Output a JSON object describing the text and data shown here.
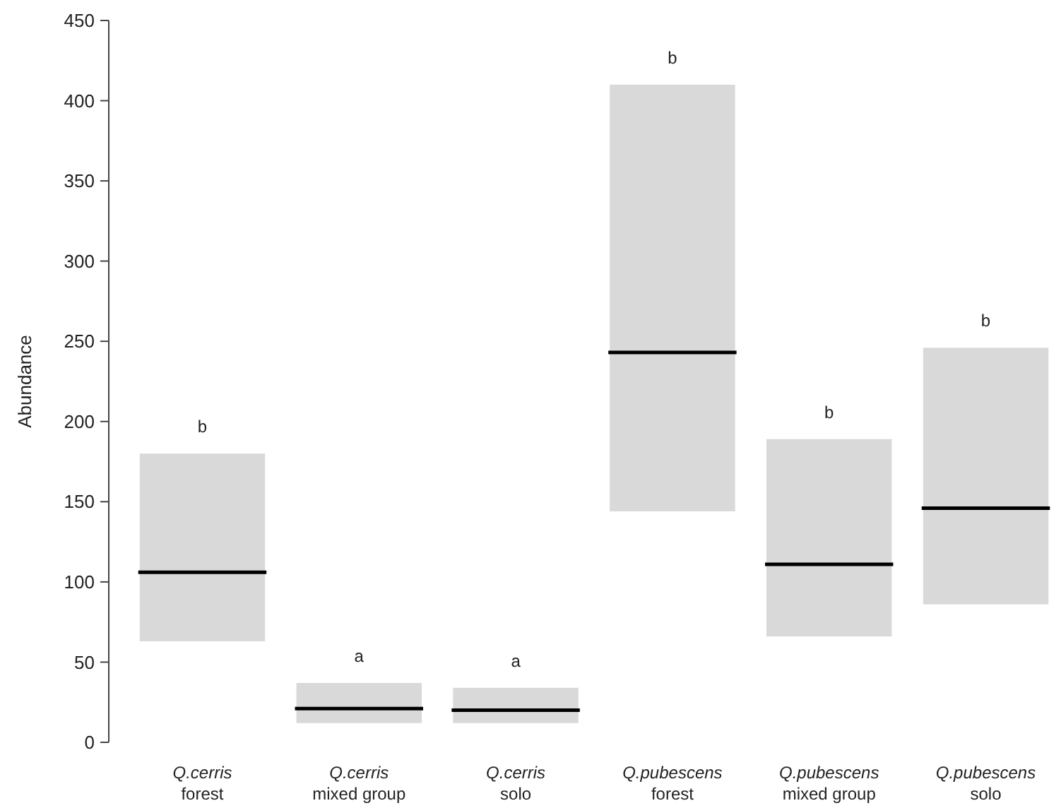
{
  "chart_data": {
    "type": "box",
    "ylabel": "Abundance",
    "categories": [
      "Q.cerris\nforest",
      "Q.cerris\nmixed group",
      "Q.cerris\nsolo",
      "Q.pubescens\nforest",
      "Q.pubescens\nmixed group",
      "Q.pubescens\nsolo"
    ],
    "boxes": [
      {
        "low": 63,
        "q1": 63,
        "median": 106,
        "q3": 180,
        "high": 180
      },
      {
        "low": 12,
        "q1": 12,
        "median": 21,
        "q3": 37,
        "high": 37
      },
      {
        "low": 12,
        "q1": 12,
        "median": 20,
        "q3": 34,
        "high": 34
      },
      {
        "low": 144,
        "q1": 144,
        "median": 243,
        "q3": 410,
        "high": 410
      },
      {
        "low": 66,
        "q1": 66,
        "median": 111,
        "q3": 189,
        "high": 189
      },
      {
        "low": 86,
        "q1": 86,
        "median": 146,
        "q3": 246,
        "high": 246
      }
    ],
    "color": "#d9d9d9",
    "ylim": [
      0,
      450
    ],
    "yticks": [
      0,
      50,
      100,
      150,
      200,
      250,
      300,
      350,
      400,
      450
    ],
    "annotations": [
      {
        "text": "b",
        "x": "Q.cerris\nforest",
        "y": 180
      },
      {
        "text": "a",
        "x": "Q.cerris\nmixed group",
        "y": 37
      },
      {
        "text": "a",
        "x": "Q.cerris\nsolo",
        "y": 34
      },
      {
        "text": "b",
        "x": "Q.pubescens\nforest",
        "y": 410
      },
      {
        "text": "b",
        "x": "Q.pubescens\nmixed group",
        "y": 189
      },
      {
        "text": "b",
        "x": "Q.pubescens\nsolo",
        "y": 246
      }
    ]
  }
}
